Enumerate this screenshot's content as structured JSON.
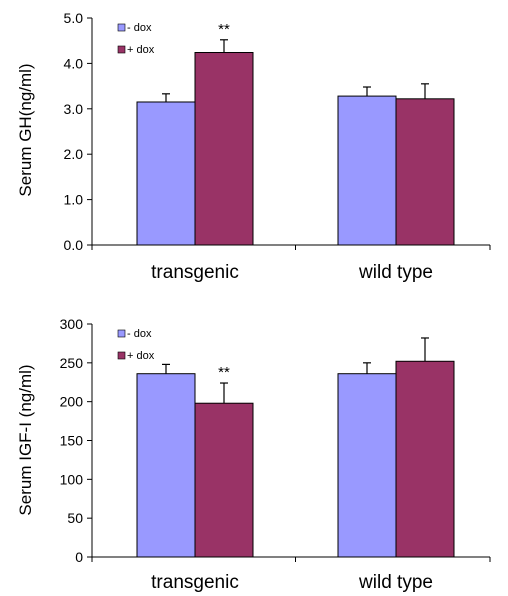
{
  "chart_data": [
    {
      "type": "bar",
      "ylabel": "Serum GH(ng/ml)",
      "categories": [
        "transgenic",
        "wild type"
      ],
      "ylim": [
        0,
        5
      ],
      "yticks": [
        "0.0",
        "1.0",
        "2.0",
        "3.0",
        "4.0",
        "5.0"
      ],
      "ytick_values": [
        0,
        1,
        2,
        3,
        4,
        5
      ],
      "series": [
        {
          "name": "- dox",
          "color": "#9999ff",
          "values": [
            3.15,
            3.28
          ],
          "errors": [
            0.18,
            0.2
          ]
        },
        {
          "name": "+ dox",
          "color": "#993366",
          "values": [
            4.24,
            3.22
          ],
          "errors": [
            0.28,
            0.33
          ]
        }
      ],
      "annotations": [
        {
          "text": "**",
          "category": 0,
          "series": 1
        }
      ],
      "grid": false,
      "legend": "top-left"
    },
    {
      "type": "bar",
      "ylabel": "Serum IGF-I (ng/ml)",
      "categories": [
        "transgenic",
        "wild type"
      ],
      "ylim": [
        0,
        300
      ],
      "yticks": [
        "0",
        "50",
        "100",
        "150",
        "200",
        "250",
        "300"
      ],
      "ytick_values": [
        0,
        50,
        100,
        150,
        200,
        250,
        300
      ],
      "series": [
        {
          "name": "- dox",
          "color": "#9999ff",
          "values": [
            236,
            236
          ],
          "errors": [
            12,
            14
          ]
        },
        {
          "name": "+ dox",
          "color": "#993366",
          "values": [
            198,
            252
          ],
          "errors": [
            26,
            30
          ]
        }
      ],
      "annotations": [
        {
          "text": "**",
          "category": 0,
          "series": 1
        }
      ],
      "grid": false,
      "legend": "top-left"
    }
  ]
}
